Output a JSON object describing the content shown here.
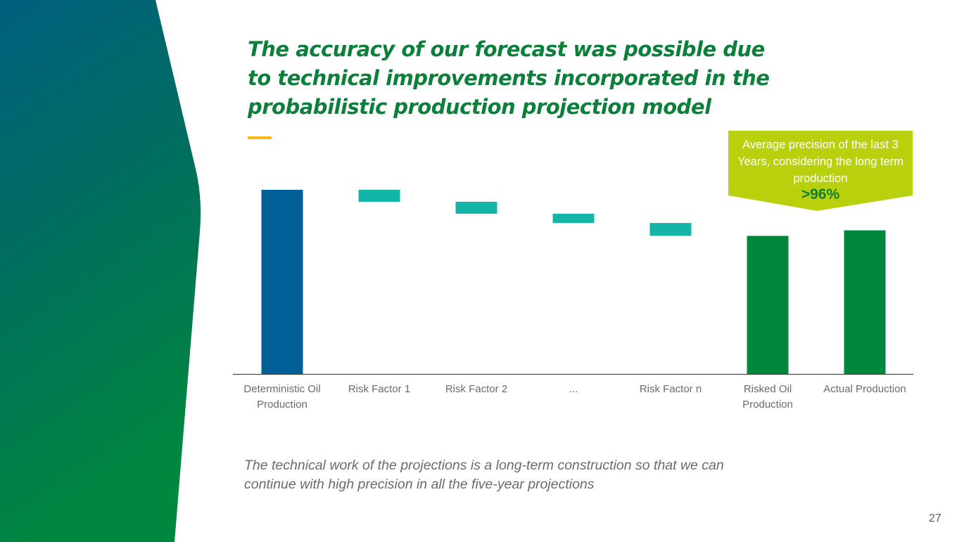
{
  "slide": {
    "title": "The accuracy of our forecast was possible due to technical improvements incorporated in the probabilistic production projection model",
    "footnote": "The technical work of the projections is a long-term construction so that we can continue with high precision in all the five-year projections",
    "page_number": "27"
  },
  "callout": {
    "text": "Average precision of the last 3 Years, considering the long term production",
    "value": ">96%"
  },
  "colors": {
    "title": "#0c7f3a",
    "accent_dash": "#f2b81c",
    "start_bar": "#005f96",
    "step_bar": "#14b5a8",
    "result_bar": "#00873c",
    "callout_bg": "#b9d00c",
    "axis": "#4a4a4a"
  },
  "chart_data": {
    "type": "bar",
    "subtype": "waterfall",
    "title": "",
    "xlabel": "",
    "ylabel": "",
    "ylim": [
      0,
      100
    ],
    "grid": false,
    "categories": [
      "Deterministic Oil Production",
      "Risk Factor 1",
      "Risk Factor 2",
      "...",
      "Risk Factor n",
      "Risked Oil Production",
      "Actual Production"
    ],
    "tick_labels": [
      "Deterministic Oil\nProduction",
      "Risk Factor 1",
      "Risk Factor 2",
      "...",
      "Risk Factor n",
      "Risked Oil\nProduction",
      "Actual Production"
    ],
    "bars": [
      {
        "kind": "total",
        "start": 0,
        "end": 100
      },
      {
        "kind": "decrease",
        "start": 100,
        "end": 93.5
      },
      {
        "kind": "decrease",
        "start": 93.5,
        "end": 87
      },
      {
        "kind": "decrease",
        "start": 87,
        "end": 82
      },
      {
        "kind": "decrease",
        "start": 82,
        "end": 75
      },
      {
        "kind": "total",
        "start": 0,
        "end": 75
      },
      {
        "kind": "total",
        "start": 0,
        "end": 78
      }
    ]
  }
}
